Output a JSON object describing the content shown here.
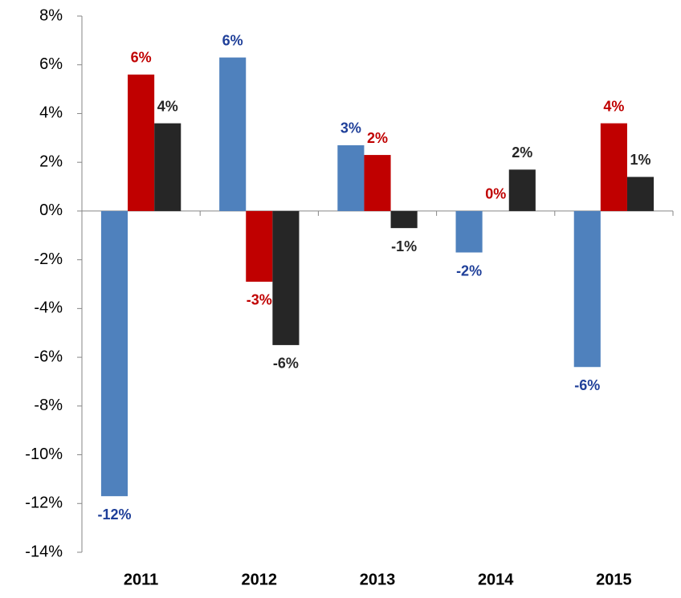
{
  "chart_data": {
    "type": "bar",
    "categories": [
      "2011",
      "2012",
      "2013",
      "2014",
      "2015"
    ],
    "series": [
      {
        "color": "#4f81bd",
        "label_color": "#1f3f99",
        "values": [
          -11.7,
          6.3,
          2.7,
          -1.7,
          -6.4
        ],
        "value_labels": [
          "-12%",
          "6%",
          "3%",
          "-2%",
          "-6%"
        ]
      },
      {
        "color": "#c00000",
        "label_color": "#c00000",
        "values": [
          5.6,
          -2.9,
          2.3,
          0,
          3.6
        ],
        "value_labels": [
          "6%",
          "-3%",
          "2%",
          "0%",
          "4%"
        ]
      },
      {
        "color": "#262626",
        "label_color": "#262626",
        "values": [
          3.6,
          -5.5,
          -0.7,
          1.7,
          1.4
        ],
        "value_labels": [
          "4%",
          "-6%",
          "-1%",
          "2%",
          "1%"
        ]
      }
    ],
    "ylim": [
      -14,
      8
    ],
    "yticks": [
      {
        "value": -14,
        "label": "-14%"
      },
      {
        "value": -12,
        "label": "-12%"
      },
      {
        "value": -10,
        "label": "-10%"
      },
      {
        "value": -8,
        "label": "-8%"
      },
      {
        "value": -6,
        "label": "-6%"
      },
      {
        "value": -4,
        "label": "-4%"
      },
      {
        "value": -2,
        "label": "-2%"
      },
      {
        "value": 0,
        "label": "0%"
      },
      {
        "value": 2,
        "label": "2%"
      },
      {
        "value": 4,
        "label": "4%"
      },
      {
        "value": 6,
        "label": "6%"
      },
      {
        "value": 8,
        "label": "8%"
      }
    ],
    "grid": false
  }
}
